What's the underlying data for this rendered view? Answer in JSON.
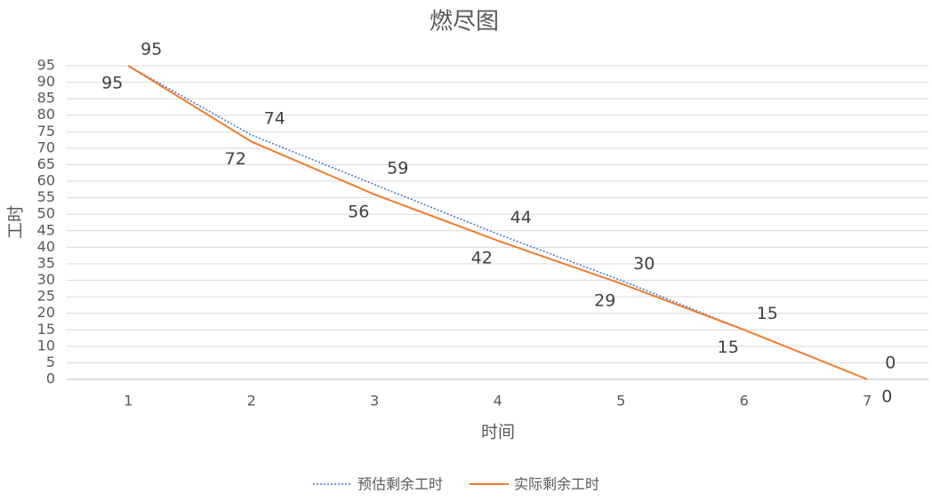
{
  "chart_data": {
    "type": "line",
    "title": "燃尽图",
    "x_label": "时间",
    "y_label": "工时",
    "categories": [
      "1",
      "2",
      "3",
      "4",
      "5",
      "6",
      "7"
    ],
    "series": [
      {
        "name": "预估剩余工时",
        "color": "#4472c4",
        "dash": "dotted",
        "values": [
          95,
          74,
          59,
          44,
          30,
          15,
          0
        ]
      },
      {
        "name": "实际剩余工时",
        "color": "#ed7d31",
        "dash": "solid",
        "values": [
          95,
          72,
          56,
          42,
          29,
          15,
          0
        ]
      }
    ],
    "ylim": [
      0,
      95
    ],
    "yticks": [
      0,
      5,
      10,
      15,
      20,
      25,
      30,
      35,
      40,
      45,
      50,
      55,
      60,
      65,
      70,
      75,
      80,
      85,
      90,
      95
    ],
    "grid": true,
    "legend": "bottom"
  }
}
